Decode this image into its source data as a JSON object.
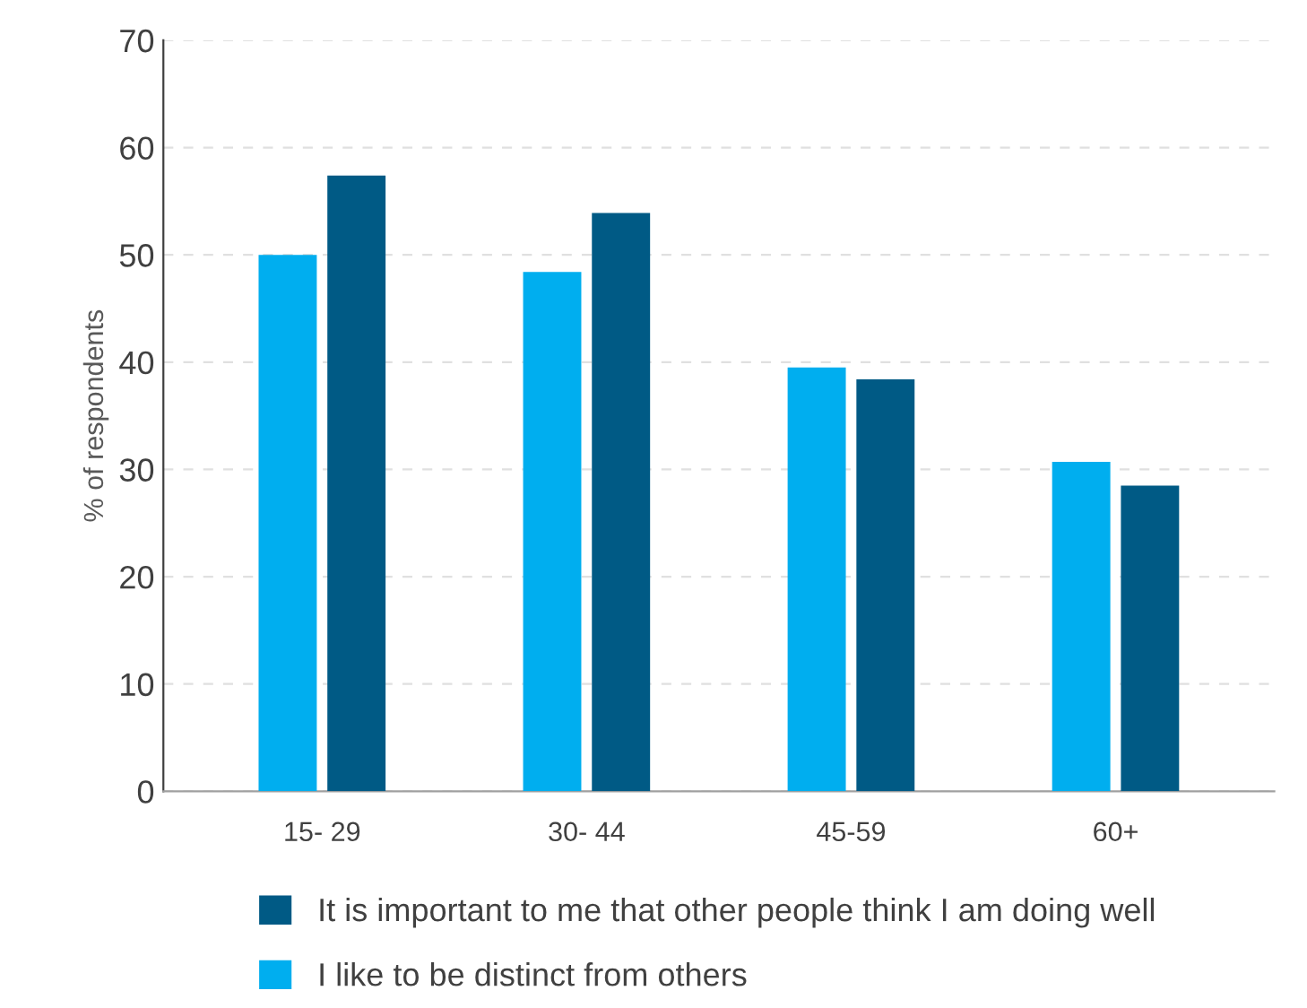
{
  "chart_data": {
    "type": "bar",
    "ylabel": "% of respondents",
    "categories": [
      "15- 29",
      "30- 44",
      "45-59",
      "60+"
    ],
    "series": [
      {
        "name": "I like to be distinct from others",
        "color": "#00aeef",
        "values": [
          50,
          48.4,
          39.5,
          30.7
        ]
      },
      {
        "name": "It is important to me that other people think I am doing well",
        "color": "#005a85",
        "values": [
          57.4,
          53.9,
          38.4,
          28.5
        ]
      }
    ],
    "ylim": [
      0,
      70
    ],
    "yticks": [
      0,
      10,
      20,
      30,
      40,
      50,
      60,
      70
    ],
    "grid": "y",
    "legend": "bottom"
  }
}
